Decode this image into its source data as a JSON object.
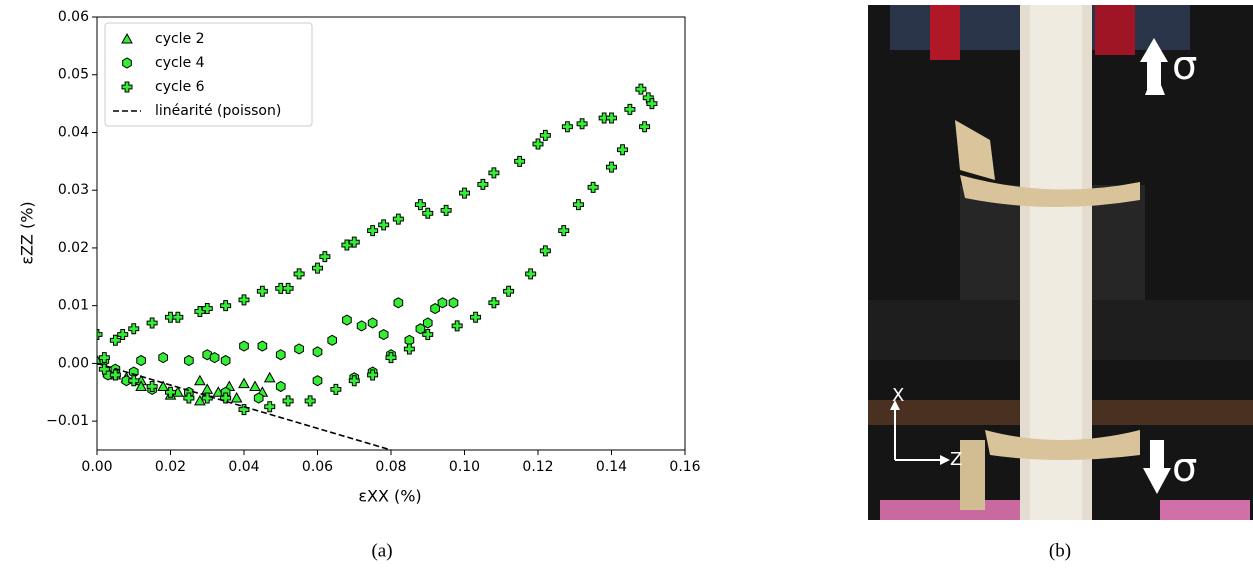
{
  "chart_data": {
    "type": "scatter",
    "xlabel": "εXX (%)",
    "ylabel": "εZZ (%)",
    "xlim": [
      0,
      0.16
    ],
    "ylim": [
      -0.015,
      0.06
    ],
    "xticks": [
      {
        "value": 0,
        "label": "0.00"
      },
      0.02,
      0.04,
      0.06,
      0.08,
      {
        "value": 0.1,
        "label": "0.10"
      },
      0.12,
      0.14,
      0.16
    ],
    "yticks": [
      {
        "value": -0.01,
        "label": "−0.01"
      },
      {
        "value": 0,
        "label": "0.00"
      },
      0.01,
      0.02,
      0.03,
      0.04,
      0.05,
      0.06
    ],
    "legend": "upper left",
    "series": [
      {
        "name": "cycle 2",
        "color": "#33ee33",
        "marker": "triangle",
        "x": [
          0,
          0.003,
          0.008,
          0.012,
          0.018,
          0.022,
          0.028,
          0.03,
          0.033,
          0.036,
          0.04,
          0.043,
          0.047,
          0.045,
          0.038,
          0.028,
          0.02,
          0.012,
          0.005
        ],
        "values": [
          0.0005,
          -0.0015,
          -0.0025,
          -0.003,
          -0.004,
          -0.005,
          -0.003,
          -0.0045,
          -0.005,
          -0.004,
          -0.0035,
          -0.004,
          -0.0025,
          -0.005,
          -0.006,
          -0.0065,
          -0.0055,
          -0.004,
          -0.002
        ]
      },
      {
        "name": "cycle 4",
        "color": "#33ee33",
        "marker": "hexagon",
        "x": [
          0.002,
          0.005,
          0.01,
          0.012,
          0.018,
          0.025,
          0.03,
          0.032,
          0.035,
          0.04,
          0.045,
          0.05,
          0.055,
          0.06,
          0.064,
          0.068,
          0.072,
          0.075,
          0.078,
          0.082,
          0.088,
          0.092,
          0.094,
          0.097,
          0.09,
          0.085,
          0.08,
          0.075,
          0.07,
          0.06,
          0.05,
          0.044,
          0.035,
          0.025,
          0.015,
          0.008,
          0.003
        ],
        "values": [
          0.0005,
          -0.001,
          -0.0015,
          0.0005,
          0.001,
          0.0005,
          0.0015,
          0.001,
          0.0005,
          0.003,
          0.003,
          0.0015,
          0.0025,
          0.002,
          0.004,
          0.0075,
          0.0065,
          0.007,
          0.005,
          0.0105,
          0.006,
          0.0095,
          0.0105,
          0.0105,
          0.007,
          0.004,
          0.0015,
          -0.0015,
          -0.0025,
          -0.003,
          -0.004,
          -0.006,
          -0.005,
          -0.005,
          -0.0045,
          -0.003,
          -0.002
        ]
      },
      {
        "name": "cycle 6",
        "color": "#33ee33",
        "marker": "plus",
        "x": [
          0,
          0.002,
          0.005,
          0.007,
          0.01,
          0.015,
          0.02,
          0.022,
          0.028,
          0.03,
          0.035,
          0.04,
          0.045,
          0.05,
          0.052,
          0.055,
          0.06,
          0.062,
          0.068,
          0.07,
          0.075,
          0.078,
          0.082,
          0.088,
          0.09,
          0.095,
          0.1,
          0.105,
          0.108,
          0.115,
          0.12,
          0.122,
          0.128,
          0.132,
          0.138,
          0.14,
          0.145,
          0.148,
          0.15,
          0.151,
          0.149,
          0.143,
          0.14,
          0.135,
          0.131,
          0.127,
          0.122,
          0.118,
          0.112,
          0.108,
          0.103,
          0.098,
          0.09,
          0.085,
          0.08,
          0.075,
          0.07,
          0.065,
          0.058,
          0.052,
          0.047,
          0.04,
          0.035,
          0.03,
          0.025,
          0.02,
          0.015,
          0.01,
          0.005,
          0.002
        ],
        "values": [
          0.005,
          0.001,
          0.004,
          0.005,
          0.006,
          0.007,
          0.008,
          0.008,
          0.009,
          0.0095,
          0.01,
          0.011,
          0.0125,
          0.013,
          0.013,
          0.0155,
          0.0165,
          0.0185,
          0.0205,
          0.021,
          0.023,
          0.024,
          0.025,
          0.0275,
          0.026,
          0.0265,
          0.0295,
          0.031,
          0.033,
          0.035,
          0.038,
          0.0395,
          0.041,
          0.0415,
          0.0425,
          0.0425,
          0.044,
          0.0475,
          0.046,
          0.045,
          0.041,
          0.037,
          0.034,
          0.0305,
          0.0275,
          0.023,
          0.0195,
          0.0155,
          0.0125,
          0.0105,
          0.008,
          0.0065,
          0.005,
          0.0025,
          0.001,
          -0.002,
          -0.003,
          -0.0045,
          -0.0065,
          -0.0065,
          -0.0075,
          -0.008,
          -0.006,
          -0.006,
          -0.006,
          -0.005,
          -0.004,
          -0.003,
          -0.002,
          -0.001
        ]
      },
      {
        "name": "linéarité (poisson)",
        "color": "#000000",
        "style": "dashed",
        "x": [
          0,
          0.08
        ],
        "values": [
          0,
          -0.015
        ]
      }
    ]
  },
  "photo": {
    "stress_top": "σ",
    "stress_bottom": "σ",
    "axis_x": "X",
    "axis_z": "Z"
  },
  "captions": [
    "(a)",
    "(b)"
  ]
}
